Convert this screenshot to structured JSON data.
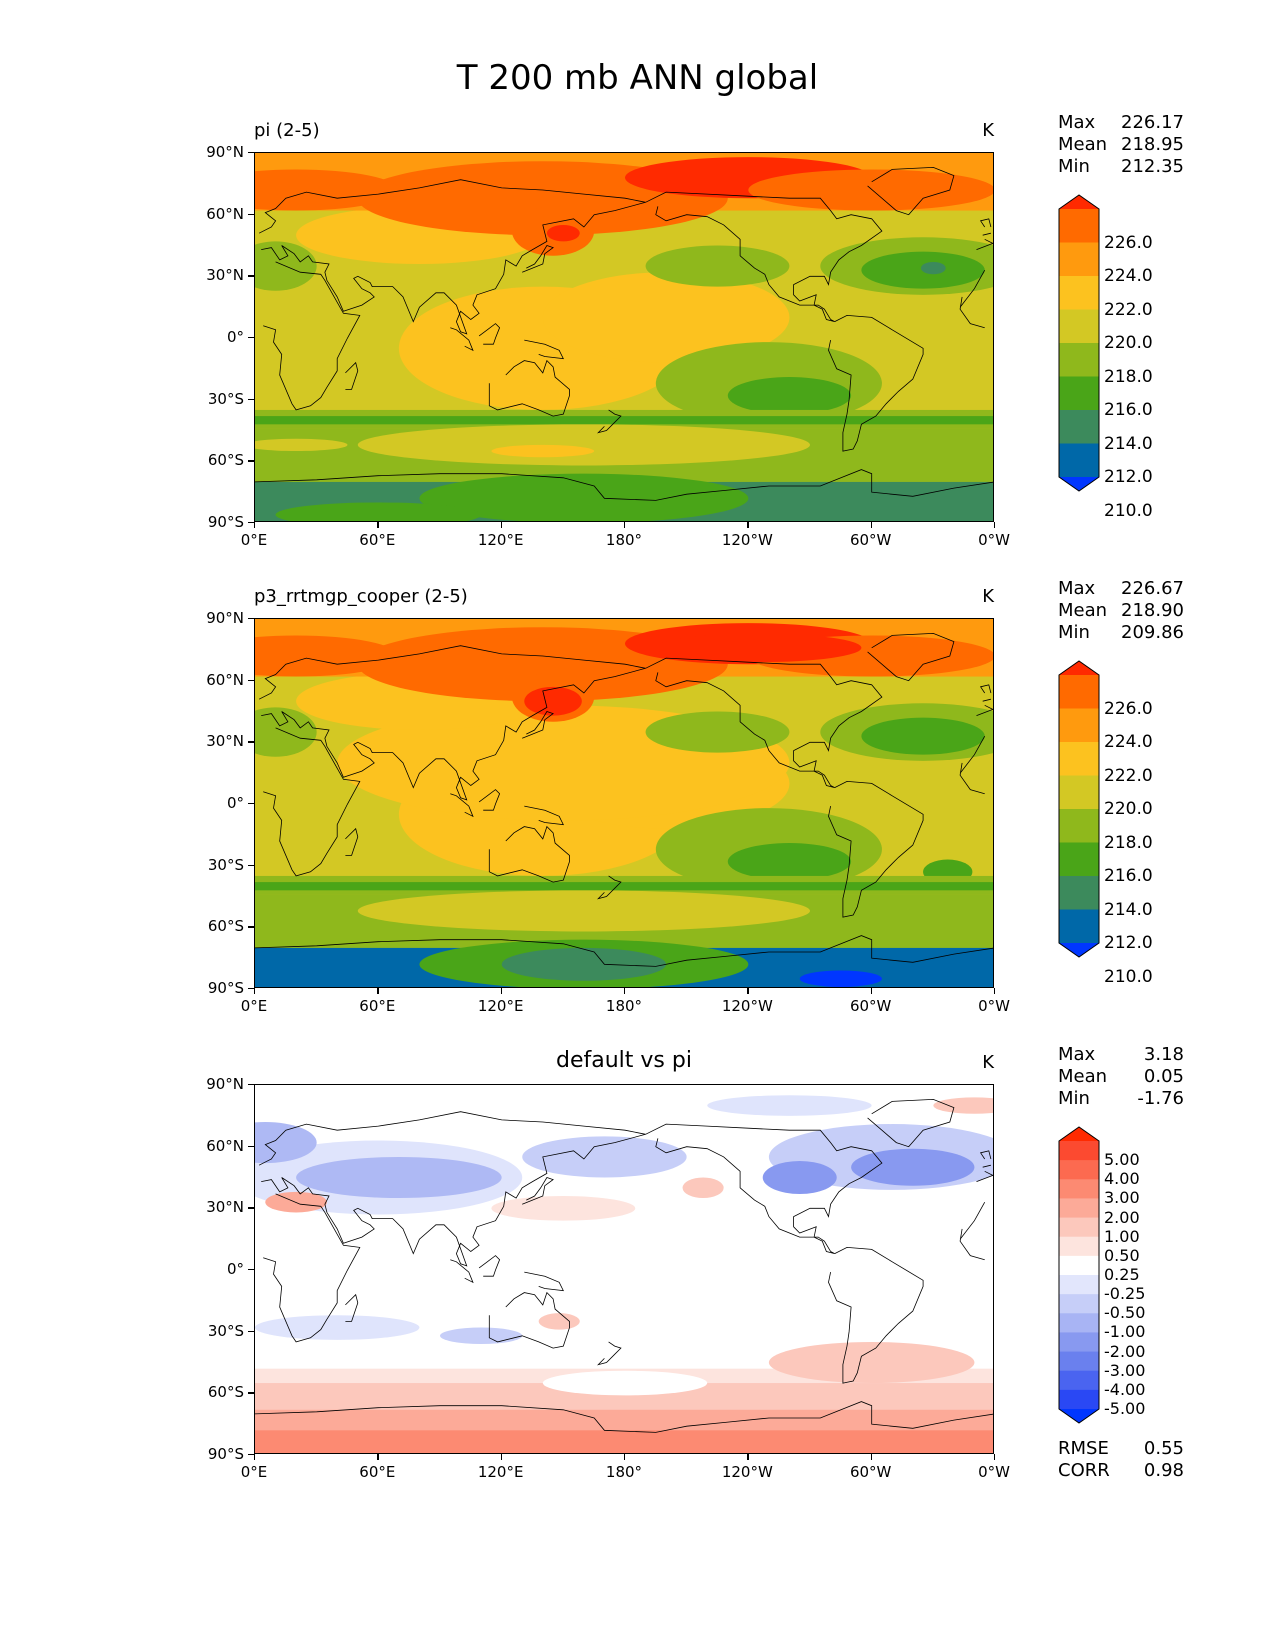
{
  "title": "T 200 mb ANN global",
  "axes": {
    "y_ticks": [
      "90°N",
      "60°N",
      "30°N",
      "0°",
      "30°S",
      "60°S",
      "90°S"
    ],
    "x_ticks": [
      "0°E",
      "60°E",
      "120°E",
      "180°",
      "120°W",
      "60°W",
      "0°W"
    ]
  },
  "panels": [
    {
      "title_left": "pi (2-5)",
      "title_center": "",
      "unit": "K",
      "stats": [
        [
          "Max",
          "226.17"
        ],
        [
          "Mean",
          "218.95"
        ],
        [
          "Min",
          "212.35"
        ]
      ],
      "colorbar": {
        "labels": [
          "226.0",
          "224.0",
          "222.0",
          "220.0",
          "218.0",
          "216.0",
          "214.0",
          "212.0",
          "210.0"
        ],
        "colors": [
          "#ff2a00",
          "#ff6a00",
          "#ff9a0e",
          "#fcc21f",
          "#d3c824",
          "#8fb81c",
          "#4aa518",
          "#3c8a5c",
          "#0068a8",
          "#0036ff"
        ]
      },
      "field_type": "model_pi"
    },
    {
      "title_left": "p3_rrtmgp_cooper (2-5)",
      "title_center": "",
      "unit": "K",
      "stats": [
        [
          "Max",
          "226.67"
        ],
        [
          "Mean",
          "218.90"
        ],
        [
          "Min",
          "209.86"
        ]
      ],
      "colorbar": {
        "labels": [
          "226.0",
          "224.0",
          "222.0",
          "220.0",
          "218.0",
          "216.0",
          "214.0",
          "212.0",
          "210.0"
        ],
        "colors": [
          "#ff2a00",
          "#ff6a00",
          "#ff9a0e",
          "#fcc21f",
          "#d3c824",
          "#8fb81c",
          "#4aa518",
          "#3c8a5c",
          "#0068a8",
          "#0036ff"
        ]
      },
      "field_type": "model_p3"
    },
    {
      "title_left": "",
      "title_center": "default vs pi",
      "unit": "K",
      "stats": [
        [
          "Max",
          "3.18"
        ],
        [
          "Mean",
          "0.05"
        ],
        [
          "Min",
          "-1.76"
        ]
      ],
      "colorbar": {
        "labels": [
          "5.00",
          "4.00",
          "3.00",
          "2.00",
          "1.00",
          "0.50",
          "0.25",
          "-0.25",
          "-0.50",
          "-1.00",
          "-2.00",
          "-3.00",
          "-4.00",
          "-5.00"
        ],
        "colors": [
          "#ff2a00",
          "#fc4a30",
          "#fc6a50",
          "#fc8a72",
          "#fcaa98",
          "#fcc8bc",
          "#fde4de",
          "#ffffff",
          "#e2e6fc",
          "#c6cef8",
          "#a8b4f4",
          "#8899f0",
          "#6a80ee",
          "#4a64f0",
          "#2a48f4",
          "#0036ff"
        ]
      },
      "diff_stats": [
        [
          "RMSE",
          "0.55"
        ],
        [
          "CORR",
          "0.98"
        ]
      ],
      "field_type": "diff"
    }
  ],
  "chart_data": [
    {
      "type": "heatmap",
      "title": "pi (2-5)",
      "variable": "T 200 mb ANN global",
      "unit": "K",
      "xlim": [
        0,
        360
      ],
      "ylim": [
        -90,
        90
      ],
      "levels": [
        210,
        212,
        214,
        216,
        218,
        220,
        222,
        224,
        226
      ],
      "stats": {
        "max": 226.17,
        "mean": 218.95,
        "min": 212.35
      }
    },
    {
      "type": "heatmap",
      "title": "p3_rrtmgp_cooper (2-5)",
      "variable": "T 200 mb ANN global",
      "unit": "K",
      "xlim": [
        0,
        360
      ],
      "ylim": [
        -90,
        90
      ],
      "levels": [
        210,
        212,
        214,
        216,
        218,
        220,
        222,
        224,
        226
      ],
      "stats": {
        "max": 226.67,
        "mean": 218.9,
        "min": 209.86
      }
    },
    {
      "type": "heatmap",
      "title": "default vs pi",
      "variable": "T 200 mb ANN global",
      "unit": "K",
      "xlim": [
        0,
        360
      ],
      "ylim": [
        -90,
        90
      ],
      "levels": [
        -5,
        -4,
        -3,
        -2,
        -1,
        -0.5,
        -0.25,
        0.25,
        0.5,
        1,
        2,
        3,
        4,
        5
      ],
      "stats": {
        "max": 3.18,
        "mean": 0.05,
        "min": -1.76,
        "rmse": 0.55,
        "corr": 0.98
      }
    }
  ]
}
